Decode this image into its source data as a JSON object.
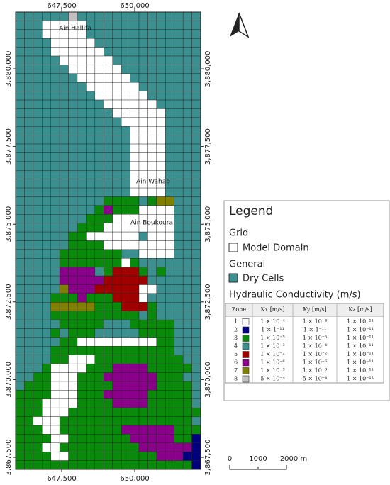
{
  "map": {
    "xlim": [
      645922,
      652257
    ],
    "ylim": [
      3867112,
      3881826
    ],
    "xticks": [
      {
        "value": 647500,
        "label": "647,500"
      },
      {
        "value": 650000,
        "label": "650,000"
      }
    ],
    "yticks": [
      {
        "value": 3880000,
        "label": "3,880,000"
      },
      {
        "value": 3877500,
        "label": "3,877,500"
      },
      {
        "value": 3875000,
        "label": "3,875,000"
      },
      {
        "value": 3872500,
        "label": "3,872,500"
      },
      {
        "value": 3870000,
        "label": "3,870,000"
      },
      {
        "value": 3867500,
        "label": "3,867,500"
      }
    ],
    "places": [
      "Ain Hallifa",
      "Ain Wahab",
      "Ain Boukoura"
    ]
  },
  "legend": {
    "title": "Legend",
    "grid_heading": "Grid",
    "grid_item": "Model Domain",
    "general_heading": "General",
    "general_item": "Dry Cells",
    "dry_color": "#3b8f8f",
    "hydraulic_heading": "Hydraulic Conductivity (m/s)",
    "table": {
      "header": [
        "Zone",
        "Kx [m/s]",
        "Ky [m/s]",
        "Kz [m/s]"
      ],
      "rows": [
        [
          "1",
          "1 × 10⁻⁴",
          "1 × 10⁻⁴",
          "1 × 10⁻¹¹"
        ],
        [
          "2",
          "1 × 1⁻¹¹",
          "1 × 1⁻¹¹",
          "1 × 10⁻¹¹"
        ],
        [
          "3",
          "1 × 10⁻⁵",
          "1 × 10⁻⁵",
          "1 × 10⁻¹¹"
        ],
        [
          "4",
          "1 × 10⁻³",
          "1 × 10⁻⁴",
          "1 × 10⁻¹¹"
        ],
        [
          "5",
          "1 × 10⁻²",
          "1 × 10⁻²",
          "1 × 10⁻¹¹"
        ],
        [
          "6",
          "1 × 10⁻⁶",
          "1 × 10⁻⁶",
          "1 × 10⁻¹¹"
        ],
        [
          "7",
          "1 × 10⁻³",
          "1 × 10⁻³",
          "1 × 10⁻¹¹"
        ],
        [
          "8",
          "5 × 10⁻⁴",
          "5 × 10⁻⁴",
          "1 × 10⁻¹²"
        ]
      ],
      "colors": [
        "#ffffff",
        "#000080",
        "#0a8a0a",
        "#3b8f8f",
        "#a00000",
        "#8b008b",
        "#808000",
        "#c0c0c0"
      ]
    }
  },
  "scale_bar": [
    "0",
    "1000",
    "2000 m"
  ]
}
